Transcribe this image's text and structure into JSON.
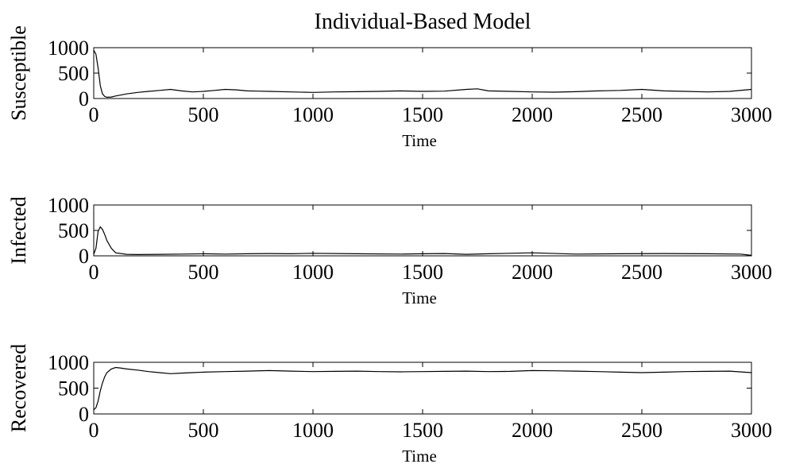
{
  "chart_data": [
    {
      "type": "line",
      "title": "Individual-Based Model",
      "xlabel": "Time",
      "ylabel": "Susceptible",
      "xlim": [
        0,
        3000
      ],
      "ylim": [
        0,
        1000
      ],
      "x_ticks": [
        "0",
        "500",
        "1000",
        "1500",
        "2000",
        "2500",
        "3000"
      ],
      "y_ticks": [
        "0",
        "500",
        "1000"
      ],
      "grid": false,
      "line_color": "#000000",
      "series": [
        {
          "x": [
            0,
            10,
            20,
            30,
            40,
            50,
            60,
            80,
            100,
            150,
            200,
            250,
            300,
            350,
            400,
            450,
            500,
            550,
            600,
            650,
            700,
            750,
            800,
            900,
            1000,
            1100,
            1200,
            1300,
            1400,
            1500,
            1600,
            1700,
            1750,
            1800,
            1900,
            2000,
            2100,
            2200,
            2300,
            2400,
            2500,
            2600,
            2700,
            2800,
            2900,
            3000
          ],
          "values": [
            950,
            870,
            600,
            250,
            90,
            40,
            25,
            30,
            50,
            90,
            120,
            140,
            160,
            180,
            150,
            130,
            140,
            160,
            180,
            170,
            150,
            145,
            140,
            130,
            120,
            130,
            135,
            140,
            150,
            140,
            145,
            180,
            190,
            150,
            140,
            130,
            125,
            135,
            150,
            160,
            180,
            150,
            140,
            130,
            140,
            180
          ]
        }
      ]
    },
    {
      "type": "line",
      "xlabel": "Time",
      "ylabel": "Infected",
      "xlim": [
        0,
        3000
      ],
      "ylim": [
        0,
        1000
      ],
      "x_ticks": [
        "0",
        "500",
        "1000",
        "1500",
        "2000",
        "2500",
        "3000"
      ],
      "y_ticks": [
        "0",
        "500",
        "1000"
      ],
      "grid": false,
      "line_color": "#000000",
      "series": [
        {
          "x": [
            0,
            10,
            20,
            30,
            40,
            50,
            60,
            80,
            100,
            150,
            200,
            300,
            400,
            500,
            600,
            700,
            800,
            900,
            1000,
            1200,
            1400,
            1500,
            1600,
            1700,
            1800,
            2000,
            2200,
            2400,
            2600,
            2800,
            2950,
            3000
          ],
          "values": [
            30,
            150,
            480,
            570,
            520,
            420,
            300,
            150,
            60,
            30,
            25,
            30,
            35,
            40,
            35,
            40,
            45,
            40,
            50,
            40,
            35,
            40,
            45,
            30,
            40,
            60,
            35,
            40,
            45,
            40,
            35,
            10
          ]
        }
      ]
    },
    {
      "type": "line",
      "xlabel": "Time",
      "ylabel": "Recovered",
      "xlim": [
        0,
        3000
      ],
      "ylim": [
        0,
        1000
      ],
      "x_ticks": [
        "0",
        "500",
        "1000",
        "1500",
        "2000",
        "2500",
        "3000"
      ],
      "y_ticks": [
        "0",
        "500",
        "1000"
      ],
      "grid": false,
      "line_color": "#000000",
      "series": [
        {
          "x": [
            0,
            10,
            20,
            30,
            40,
            50,
            60,
            80,
            100,
            120,
            150,
            200,
            250,
            300,
            350,
            400,
            450,
            500,
            600,
            700,
            800,
            900,
            1000,
            1100,
            1200,
            1300,
            1400,
            1500,
            1600,
            1700,
            1800,
            1900,
            2000,
            2100,
            2200,
            2300,
            2400,
            2500,
            2600,
            2700,
            2800,
            2900,
            3000
          ],
          "values": [
            80,
            120,
            250,
            450,
            600,
            720,
            800,
            870,
            900,
            890,
            870,
            850,
            820,
            800,
            780,
            790,
            800,
            810,
            820,
            830,
            840,
            830,
            820,
            825,
            830,
            820,
            815,
            820,
            825,
            830,
            820,
            825,
            840,
            835,
            830,
            820,
            810,
            800,
            810,
            820,
            825,
            830,
            800
          ]
        }
      ]
    }
  ]
}
